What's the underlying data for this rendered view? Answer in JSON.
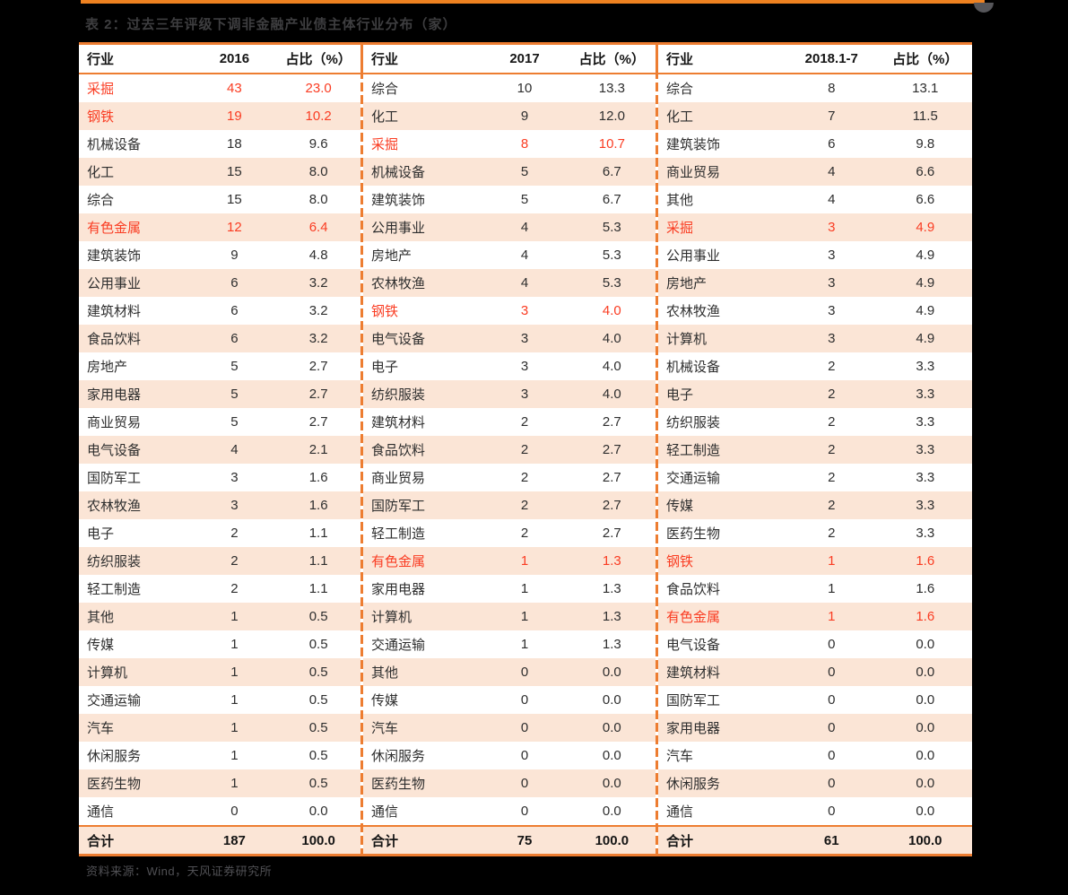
{
  "title": "表 2：过去三年评级下调非金融产业债主体行业分布（家）",
  "source_note": "资料来源：Wind，天风证券研究所",
  "colors": {
    "page_bg": "#000000",
    "accent_orange": "#ED7D31",
    "top_line_orange": "#EE8120",
    "row_pink": "#FBE5D6",
    "highlight_red": "#FA3C22"
  },
  "table": {
    "groups": [
      {
        "headers": [
          "行业",
          "2016",
          "占比（%）"
        ],
        "rows": [
          {
            "industry": "采掘",
            "count": "43",
            "pct": "23.0",
            "hl": true
          },
          {
            "industry": "钢铁",
            "count": "19",
            "pct": "10.2",
            "hl": true
          },
          {
            "industry": "机械设备",
            "count": "18",
            "pct": "9.6",
            "hl": false
          },
          {
            "industry": "化工",
            "count": "15",
            "pct": "8.0",
            "hl": false
          },
          {
            "industry": "综合",
            "count": "15",
            "pct": "8.0",
            "hl": false
          },
          {
            "industry": "有色金属",
            "count": "12",
            "pct": "6.4",
            "hl": true
          },
          {
            "industry": "建筑装饰",
            "count": "9",
            "pct": "4.8",
            "hl": false
          },
          {
            "industry": "公用事业",
            "count": "6",
            "pct": "3.2",
            "hl": false
          },
          {
            "industry": "建筑材料",
            "count": "6",
            "pct": "3.2",
            "hl": false
          },
          {
            "industry": "食品饮料",
            "count": "6",
            "pct": "3.2",
            "hl": false
          },
          {
            "industry": "房地产",
            "count": "5",
            "pct": "2.7",
            "hl": false
          },
          {
            "industry": "家用电器",
            "count": "5",
            "pct": "2.7",
            "hl": false
          },
          {
            "industry": "商业贸易",
            "count": "5",
            "pct": "2.7",
            "hl": false
          },
          {
            "industry": "电气设备",
            "count": "4",
            "pct": "2.1",
            "hl": false
          },
          {
            "industry": "国防军工",
            "count": "3",
            "pct": "1.6",
            "hl": false
          },
          {
            "industry": "农林牧渔",
            "count": "3",
            "pct": "1.6",
            "hl": false
          },
          {
            "industry": "电子",
            "count": "2",
            "pct": "1.1",
            "hl": false
          },
          {
            "industry": "纺织服装",
            "count": "2",
            "pct": "1.1",
            "hl": false
          },
          {
            "industry": "轻工制造",
            "count": "2",
            "pct": "1.1",
            "hl": false
          },
          {
            "industry": "其他",
            "count": "1",
            "pct": "0.5",
            "hl": false
          },
          {
            "industry": "传媒",
            "count": "1",
            "pct": "0.5",
            "hl": false
          },
          {
            "industry": "计算机",
            "count": "1",
            "pct": "0.5",
            "hl": false
          },
          {
            "industry": "交通运输",
            "count": "1",
            "pct": "0.5",
            "hl": false
          },
          {
            "industry": "汽车",
            "count": "1",
            "pct": "0.5",
            "hl": false
          },
          {
            "industry": "休闲服务",
            "count": "1",
            "pct": "0.5",
            "hl": false
          },
          {
            "industry": "医药生物",
            "count": "1",
            "pct": "0.5",
            "hl": false
          },
          {
            "industry": "通信",
            "count": "0",
            "pct": "0.0",
            "hl": false
          }
        ],
        "total": {
          "label": "合计",
          "count": "187",
          "pct": "100.0"
        }
      },
      {
        "headers": [
          "行业",
          "2017",
          "占比（%）"
        ],
        "rows": [
          {
            "industry": "综合",
            "count": "10",
            "pct": "13.3",
            "hl": false
          },
          {
            "industry": "化工",
            "count": "9",
            "pct": "12.0",
            "hl": false
          },
          {
            "industry": "采掘",
            "count": "8",
            "pct": "10.7",
            "hl": true
          },
          {
            "industry": "机械设备",
            "count": "5",
            "pct": "6.7",
            "hl": false
          },
          {
            "industry": "建筑装饰",
            "count": "5",
            "pct": "6.7",
            "hl": false
          },
          {
            "industry": "公用事业",
            "count": "4",
            "pct": "5.3",
            "hl": false
          },
          {
            "industry": "房地产",
            "count": "4",
            "pct": "5.3",
            "hl": false
          },
          {
            "industry": "农林牧渔",
            "count": "4",
            "pct": "5.3",
            "hl": false
          },
          {
            "industry": "钢铁",
            "count": "3",
            "pct": "4.0",
            "hl": true
          },
          {
            "industry": "电气设备",
            "count": "3",
            "pct": "4.0",
            "hl": false
          },
          {
            "industry": "电子",
            "count": "3",
            "pct": "4.0",
            "hl": false
          },
          {
            "industry": "纺织服装",
            "count": "3",
            "pct": "4.0",
            "hl": false
          },
          {
            "industry": "建筑材料",
            "count": "2",
            "pct": "2.7",
            "hl": false
          },
          {
            "industry": "食品饮料",
            "count": "2",
            "pct": "2.7",
            "hl": false
          },
          {
            "industry": "商业贸易",
            "count": "2",
            "pct": "2.7",
            "hl": false
          },
          {
            "industry": "国防军工",
            "count": "2",
            "pct": "2.7",
            "hl": false
          },
          {
            "industry": "轻工制造",
            "count": "2",
            "pct": "2.7",
            "hl": false
          },
          {
            "industry": "有色金属",
            "count": "1",
            "pct": "1.3",
            "hl": true
          },
          {
            "industry": "家用电器",
            "count": "1",
            "pct": "1.3",
            "hl": false
          },
          {
            "industry": "计算机",
            "count": "1",
            "pct": "1.3",
            "hl": false
          },
          {
            "industry": "交通运输",
            "count": "1",
            "pct": "1.3",
            "hl": false
          },
          {
            "industry": "其他",
            "count": "0",
            "pct": "0.0",
            "hl": false
          },
          {
            "industry": "传媒",
            "count": "0",
            "pct": "0.0",
            "hl": false
          },
          {
            "industry": "汽车",
            "count": "0",
            "pct": "0.0",
            "hl": false
          },
          {
            "industry": "休闲服务",
            "count": "0",
            "pct": "0.0",
            "hl": false
          },
          {
            "industry": "医药生物",
            "count": "0",
            "pct": "0.0",
            "hl": false
          },
          {
            "industry": "通信",
            "count": "0",
            "pct": "0.0",
            "hl": false
          }
        ],
        "total": {
          "label": "合计",
          "count": "75",
          "pct": "100.0"
        }
      },
      {
        "headers": [
          "行业",
          "2018.1-7",
          "占比（%）"
        ],
        "rows": [
          {
            "industry": "综合",
            "count": "8",
            "pct": "13.1",
            "hl": false
          },
          {
            "industry": "化工",
            "count": "7",
            "pct": "11.5",
            "hl": false
          },
          {
            "industry": "建筑装饰",
            "count": "6",
            "pct": "9.8",
            "hl": false
          },
          {
            "industry": "商业贸易",
            "count": "4",
            "pct": "6.6",
            "hl": false
          },
          {
            "industry": "其他",
            "count": "4",
            "pct": "6.6",
            "hl": false
          },
          {
            "industry": "采掘",
            "count": "3",
            "pct": "4.9",
            "hl": true
          },
          {
            "industry": "公用事业",
            "count": "3",
            "pct": "4.9",
            "hl": false
          },
          {
            "industry": "房地产",
            "count": "3",
            "pct": "4.9",
            "hl": false
          },
          {
            "industry": "农林牧渔",
            "count": "3",
            "pct": "4.9",
            "hl": false
          },
          {
            "industry": "计算机",
            "count": "3",
            "pct": "4.9",
            "hl": false
          },
          {
            "industry": "机械设备",
            "count": "2",
            "pct": "3.3",
            "hl": false
          },
          {
            "industry": "电子",
            "count": "2",
            "pct": "3.3",
            "hl": false
          },
          {
            "industry": "纺织服装",
            "count": "2",
            "pct": "3.3",
            "hl": false
          },
          {
            "industry": "轻工制造",
            "count": "2",
            "pct": "3.3",
            "hl": false
          },
          {
            "industry": "交通运输",
            "count": "2",
            "pct": "3.3",
            "hl": false
          },
          {
            "industry": "传媒",
            "count": "2",
            "pct": "3.3",
            "hl": false
          },
          {
            "industry": "医药生物",
            "count": "2",
            "pct": "3.3",
            "hl": false
          },
          {
            "industry": "钢铁",
            "count": "1",
            "pct": "1.6",
            "hl": true
          },
          {
            "industry": "食品饮料",
            "count": "1",
            "pct": "1.6",
            "hl": false
          },
          {
            "industry": "有色金属",
            "count": "1",
            "pct": "1.6",
            "hl": true
          },
          {
            "industry": "电气设备",
            "count": "0",
            "pct": "0.0",
            "hl": false
          },
          {
            "industry": "建筑材料",
            "count": "0",
            "pct": "0.0",
            "hl": false
          },
          {
            "industry": "国防军工",
            "count": "0",
            "pct": "0.0",
            "hl": false
          },
          {
            "industry": "家用电器",
            "count": "0",
            "pct": "0.0",
            "hl": false
          },
          {
            "industry": "汽车",
            "count": "0",
            "pct": "0.0",
            "hl": false
          },
          {
            "industry": "休闲服务",
            "count": "0",
            "pct": "0.0",
            "hl": false
          },
          {
            "industry": "通信",
            "count": "0",
            "pct": "0.0",
            "hl": false
          }
        ],
        "total": {
          "label": "合计",
          "count": "61",
          "pct": "100.0"
        }
      }
    ]
  }
}
